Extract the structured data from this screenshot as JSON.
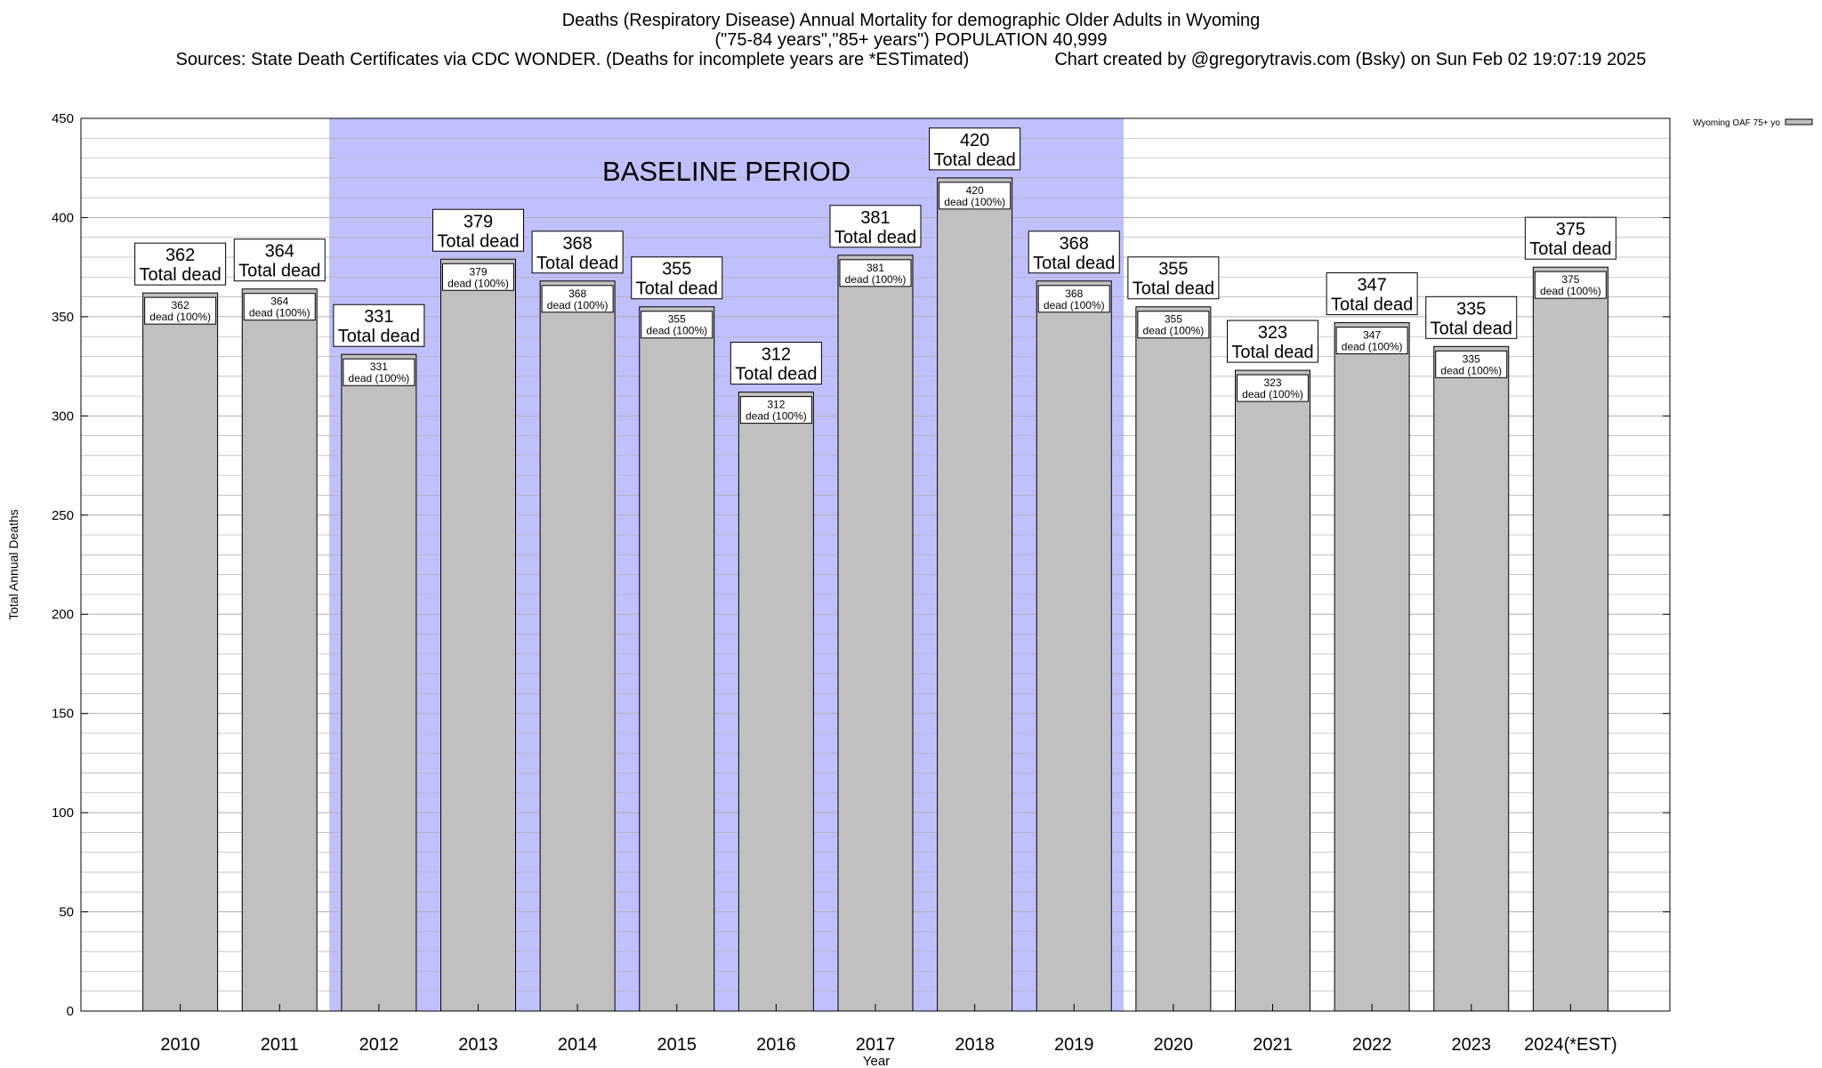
{
  "header": {
    "title_line1": "Deaths (Respiratory Disease) Annual Mortality for demographic Older Adults in Wyoming",
    "title_line2": "(\"75-84 years\",\"85+ years\") POPULATION 40,999",
    "sources": "Sources: State Death Certificates via CDC WONDER. (Deaths for incomplete years are *ESTimated)",
    "credit": "Chart created by @gregorytravis.com (Bsky) on Sun Feb 02 19:07:19 2025"
  },
  "chart_data": {
    "type": "bar",
    "title": "Deaths (Respiratory Disease) Annual Mortality for demographic Older Adults in Wyoming",
    "xlabel": "Year",
    "ylabel": "Total Annual Deaths",
    "ylim": [
      0,
      450
    ],
    "yticks": [
      0,
      50,
      100,
      150,
      200,
      250,
      300,
      350,
      400,
      450
    ],
    "minor_grid_step": 10,
    "grid": true,
    "legend_position": "top-right",
    "categories": [
      "2010",
      "2011",
      "2012",
      "2013",
      "2014",
      "2015",
      "2016",
      "2017",
      "2018",
      "2019",
      "2020",
      "2021",
      "2022",
      "2023",
      "2024(*EST)"
    ],
    "series": [
      {
        "name": "Wyoming OAF 75+ yo",
        "values": [
          362,
          364,
          331,
          379,
          368,
          355,
          312,
          381,
          420,
          368,
          355,
          323,
          347,
          335,
          375
        ]
      }
    ],
    "label_top_suffix": "Total dead",
    "label_inner_suffix": "dead (100%)",
    "baseline": {
      "label": "BASELINE PERIOD",
      "start": "2012",
      "end": "2019"
    },
    "colors": {
      "bar": "#c0c0c0",
      "baseline": "#c0c0ff",
      "grid": "#b0b0b0"
    }
  }
}
